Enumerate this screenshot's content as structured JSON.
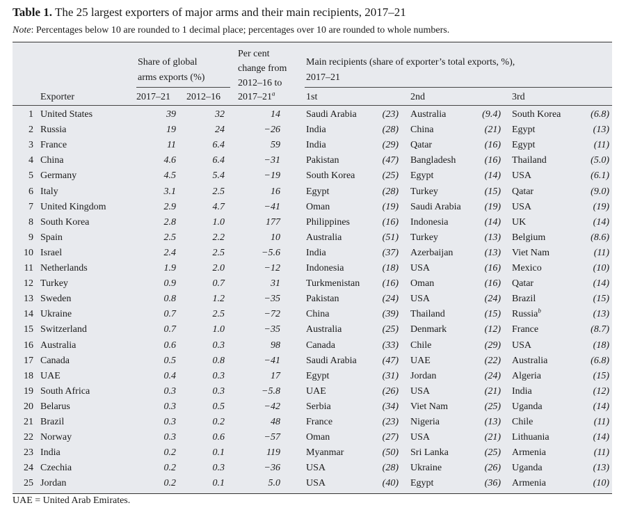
{
  "title": {
    "label": "Table 1.",
    "text": "The 25 largest exporters of major arms and their main recipients, 2017–21"
  },
  "note": {
    "label": "Note",
    "text": ": Percentages below 10 are rounded to 1 decimal place; percentages over 10 are rounded to whole numbers."
  },
  "headers": {
    "exporter": "Exporter",
    "share_line1": "Share of global",
    "share_line2": "arms exports (%)",
    "share_p1": "2017–21",
    "share_p2": "2012–16",
    "change_line1": "Per cent",
    "change_line2": "change from",
    "change_line3": "2012–16 to",
    "change_line4": "2017–21",
    "change_sup": "a",
    "recip_line1": "Main recipients (share of exporter’s total exports, %),",
    "recip_line2": "2017–21",
    "first": "1st",
    "second": "2nd",
    "third": "3rd"
  },
  "rows": [
    {
      "rank": "1",
      "exporter": "United States",
      "s1": "39",
      "s2": "32",
      "chg": "14",
      "r1": "Saudi Arabia",
      "p1": "(23)",
      "r2": "Australia",
      "p2": "(9.4)",
      "r3": "South Korea",
      "r3sup": "",
      "p3": "(6.8)"
    },
    {
      "rank": "2",
      "exporter": "Russia",
      "s1": "19",
      "s2": "24",
      "chg": "−26",
      "r1": "India",
      "p1": "(28)",
      "r2": "China",
      "p2": "(21)",
      "r3": "Egypt",
      "r3sup": "",
      "p3": "(13)"
    },
    {
      "rank": "3",
      "exporter": "France",
      "s1": "11",
      "s2": "6.4",
      "chg": "59",
      "r1": "India",
      "p1": "(29)",
      "r2": "Qatar",
      "p2": "(16)",
      "r3": "Egypt",
      "r3sup": "",
      "p3": "(11)"
    },
    {
      "rank": "4",
      "exporter": "China",
      "s1": "4.6",
      "s2": "6.4",
      "chg": "−31",
      "r1": "Pakistan",
      "p1": "(47)",
      "r2": "Bangladesh",
      "p2": "(16)",
      "r3": "Thailand",
      "r3sup": "",
      "p3": "(5.0)"
    },
    {
      "rank": "5",
      "exporter": "Germany",
      "s1": "4.5",
      "s2": "5.4",
      "chg": "−19",
      "r1": "South Korea",
      "p1": "(25)",
      "r2": "Egypt",
      "p2": "(14)",
      "r3": "USA",
      "r3sup": "",
      "p3": "(6.1)"
    },
    {
      "rank": "6",
      "exporter": "Italy",
      "s1": "3.1",
      "s2": "2.5",
      "chg": "16",
      "r1": "Egypt",
      "p1": "(28)",
      "r2": "Turkey",
      "p2": "(15)",
      "r3": "Qatar",
      "r3sup": "",
      "p3": "(9.0)"
    },
    {
      "rank": "7",
      "exporter": "United Kingdom",
      "s1": "2.9",
      "s2": "4.7",
      "chg": "−41",
      "r1": "Oman",
      "p1": "(19)",
      "r2": "Saudi Arabia",
      "p2": "(19)",
      "r3": "USA",
      "r3sup": "",
      "p3": "(19)"
    },
    {
      "rank": "8",
      "exporter": "South Korea",
      "s1": "2.8",
      "s2": "1.0",
      "chg": "177",
      "r1": "Philippines",
      "p1": "(16)",
      "r2": "Indonesia",
      "p2": "(14)",
      "r3": "UK",
      "r3sup": "",
      "p3": "(14)"
    },
    {
      "rank": "9",
      "exporter": "Spain",
      "s1": "2.5",
      "s2": "2.2",
      "chg": "10",
      "r1": "Australia",
      "p1": "(51)",
      "r2": "Turkey",
      "p2": "(13)",
      "r3": "Belgium",
      "r3sup": "",
      "p3": "(8.6)"
    },
    {
      "rank": "10",
      "exporter": "Israel",
      "s1": "2.4",
      "s2": "2.5",
      "chg": "−5.6",
      "r1": "India",
      "p1": "(37)",
      "r2": "Azerbaijan",
      "p2": "(13)",
      "r3": "Viet Nam",
      "r3sup": "",
      "p3": "(11)"
    },
    {
      "rank": "11",
      "exporter": "Netherlands",
      "s1": "1.9",
      "s2": "2.0",
      "chg": "−12",
      "r1": "Indonesia",
      "p1": "(18)",
      "r2": "USA",
      "p2": "(16)",
      "r3": "Mexico",
      "r3sup": "",
      "p3": "(10)"
    },
    {
      "rank": "12",
      "exporter": "Turkey",
      "s1": "0.9",
      "s2": "0.7",
      "chg": "31",
      "r1": "Turkmenistan",
      "p1": "(16)",
      "r2": "Oman",
      "p2": "(16)",
      "r3": "Qatar",
      "r3sup": "",
      "p3": "(14)"
    },
    {
      "rank": "13",
      "exporter": "Sweden",
      "s1": "0.8",
      "s2": "1.2",
      "chg": "−35",
      "r1": "Pakistan",
      "p1": "(24)",
      "r2": "USA",
      "p2": "(24)",
      "r3": "Brazil",
      "r3sup": "",
      "p3": "(15)"
    },
    {
      "rank": "14",
      "exporter": "Ukraine",
      "s1": "0.7",
      "s2": "2.5",
      "chg": "−72",
      "r1": "China",
      "p1": "(39)",
      "r2": "Thailand",
      "p2": "(15)",
      "r3": "Russia",
      "r3sup": "b",
      "p3": "(13)"
    },
    {
      "rank": "15",
      "exporter": "Switzerland",
      "s1": "0.7",
      "s2": "1.0",
      "chg": "−35",
      "r1": "Australia",
      "p1": "(25)",
      "r2": "Denmark",
      "p2": "(12)",
      "r3": "France",
      "r3sup": "",
      "p3": "(8.7)"
    },
    {
      "rank": "16",
      "exporter": "Australia",
      "s1": "0.6",
      "s2": "0.3",
      "chg": "98",
      "r1": "Canada",
      "p1": "(33)",
      "r2": "Chile",
      "p2": "(29)",
      "r3": "USA",
      "r3sup": "",
      "p3": "(18)"
    },
    {
      "rank": "17",
      "exporter": "Canada",
      "s1": "0.5",
      "s2": "0.8",
      "chg": "−41",
      "r1": "Saudi Arabia",
      "p1": "(47)",
      "r2": "UAE",
      "p2": "(22)",
      "r3": "Australia",
      "r3sup": "",
      "p3": "(6.8)"
    },
    {
      "rank": "18",
      "exporter": "UAE",
      "s1": "0.4",
      "s2": "0.3",
      "chg": "17",
      "r1": "Egypt",
      "p1": "(31)",
      "r2": "Jordan",
      "p2": "(24)",
      "r3": "Algeria",
      "r3sup": "",
      "p3": "(15)"
    },
    {
      "rank": "19",
      "exporter": "South Africa",
      "s1": "0.3",
      "s2": "0.3",
      "chg": "−5.8",
      "r1": "UAE",
      "p1": "(26)",
      "r2": "USA",
      "p2": "(21)",
      "r3": "India",
      "r3sup": "",
      "p3": "(12)"
    },
    {
      "rank": "20",
      "exporter": "Belarus",
      "s1": "0.3",
      "s2": "0.5",
      "chg": "−42",
      "r1": "Serbia",
      "p1": "(34)",
      "r2": "Viet Nam",
      "p2": "(25)",
      "r3": "Uganda",
      "r3sup": "",
      "p3": "(14)"
    },
    {
      "rank": "21",
      "exporter": "Brazil",
      "s1": "0.3",
      "s2": "0.2",
      "chg": "48",
      "r1": "France",
      "p1": "(23)",
      "r2": "Nigeria",
      "p2": "(13)",
      "r3": "Chile",
      "r3sup": "",
      "p3": "(11)"
    },
    {
      "rank": "22",
      "exporter": "Norway",
      "s1": "0.3",
      "s2": "0.6",
      "chg": "−57",
      "r1": "Oman",
      "p1": "(27)",
      "r2": "USA",
      "p2": "(21)",
      "r3": "Lithuania",
      "r3sup": "",
      "p3": "(14)"
    },
    {
      "rank": "23",
      "exporter": "India",
      "s1": "0.2",
      "s2": "0.1",
      "chg": "119",
      "r1": "Myanmar",
      "p1": "(50)",
      "r2": "Sri Lanka",
      "p2": "(25)",
      "r3": "Armenia",
      "r3sup": "",
      "p3": "(11)"
    },
    {
      "rank": "24",
      "exporter": "Czechia",
      "s1": "0.2",
      "s2": "0.3",
      "chg": "−36",
      "r1": "USA",
      "p1": "(28)",
      "r2": "Ukraine",
      "p2": "(26)",
      "r3": "Uganda",
      "r3sup": "",
      "p3": "(13)"
    },
    {
      "rank": "25",
      "exporter": "Jordan",
      "s1": "0.2",
      "s2": "0.1",
      "chg": "5.0",
      "r1": "USA",
      "p1": "(40)",
      "r2": "Egypt",
      "p2": "(36)",
      "r3": "Armenia",
      "r3sup": "",
      "p3": "(10)"
    }
  ],
  "footer": "UAE = United Arab Emirates."
}
